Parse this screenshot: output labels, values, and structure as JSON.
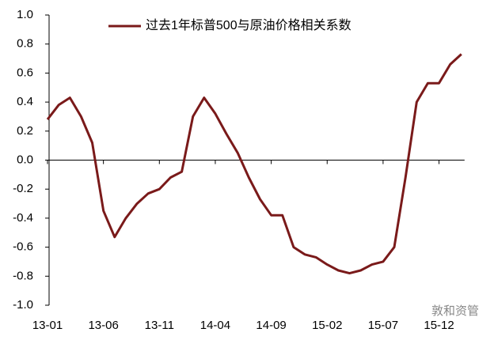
{
  "chart_data": {
    "type": "line",
    "categories": [
      "13-01",
      null,
      null,
      null,
      null,
      "13-06",
      null,
      null,
      null,
      null,
      "13-11",
      null,
      null,
      null,
      null,
      "14-04",
      null,
      null,
      null,
      null,
      "14-09",
      null,
      null,
      null,
      null,
      "15-02",
      null,
      null,
      null,
      null,
      "15-07",
      null,
      null,
      null,
      null,
      "15-12",
      null,
      null
    ],
    "series": [
      {
        "name": "过去1年标普500与原油价格相关系数",
        "color": "#7a1a1a",
        "values": [
          0.28,
          0.38,
          0.43,
          0.3,
          0.12,
          -0.35,
          -0.53,
          -0.4,
          -0.3,
          -0.23,
          -0.2,
          -0.12,
          -0.08,
          0.3,
          0.43,
          0.32,
          0.18,
          0.05,
          -0.12,
          -0.27,
          -0.38,
          -0.38,
          -0.6,
          -0.65,
          -0.67,
          -0.72,
          -0.76,
          -0.78,
          -0.76,
          -0.72,
          -0.7,
          -0.6,
          -0.12,
          0.4,
          0.53,
          0.53,
          0.66,
          0.73
        ]
      }
    ],
    "ylim": [
      -1.0,
      1.0
    ],
    "yticks": [
      {
        "value": -1.0,
        "label": "-1.0"
      },
      {
        "value": -0.8,
        "label": "-0.8"
      },
      {
        "value": -0.6,
        "label": "-0.6"
      },
      {
        "value": -0.4,
        "label": "-0.4"
      },
      {
        "value": -0.2,
        "label": "-0.2"
      },
      {
        "value": 0,
        "label": "0.0"
      },
      {
        "value": 0.2,
        "label": "0.2"
      },
      {
        "value": 0.4,
        "label": "0.4"
      },
      {
        "value": 0.6,
        "label": "0.6"
      },
      {
        "value": 0.8,
        "label": "0.8"
      },
      {
        "value": 1.0,
        "label": "1.0"
      }
    ],
    "legend": "top",
    "watermark": "敦和资管"
  }
}
